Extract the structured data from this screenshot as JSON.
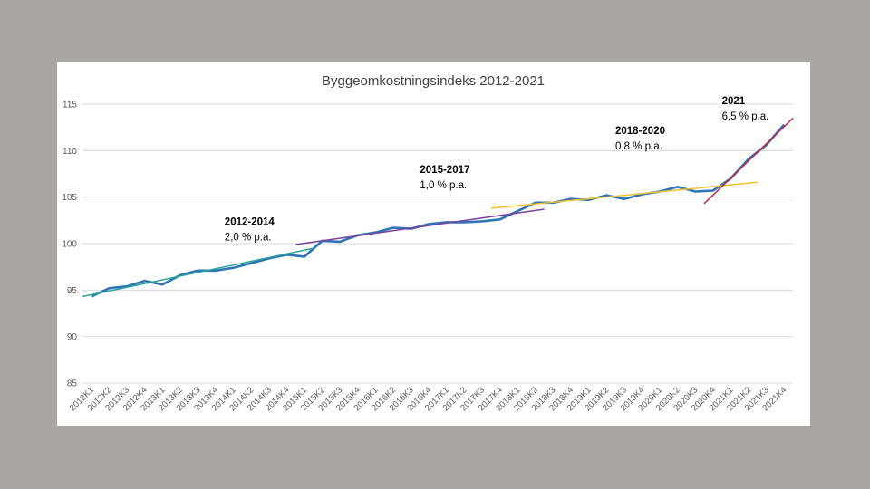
{
  "chart_data": {
    "type": "line",
    "title": "Byggeomkostningsindeks 2012-2021",
    "xlabel": "",
    "ylabel": "",
    "ylim": [
      85,
      115
    ],
    "yticks": [
      85,
      90,
      95,
      100,
      105,
      110,
      115
    ],
    "grid": true,
    "categories": [
      "2012K1",
      "2012K2",
      "2012K3",
      "2012K4",
      "2013K1",
      "2013K2",
      "2013K3",
      "2013K4",
      "2014K1",
      "2014K2",
      "2014K3",
      "2014K4",
      "2015K1",
      "2015K2",
      "2015K3",
      "2015K4",
      "2016K1",
      "2016K2",
      "2016K3",
      "2016K4",
      "2017K1",
      "2017K2",
      "2017K3",
      "2017K4",
      "2018K1",
      "2018K2",
      "2018K3",
      "2018K4",
      "2019K1",
      "2019K2",
      "2019K3",
      "2019K4",
      "2020K1",
      "2020K2",
      "2020K3",
      "2020K4",
      "2021K1",
      "2021K2",
      "2021K3",
      "2021K4"
    ],
    "series": [
      {
        "color": "#2e75b6",
        "values": [
          94.3,
          95.2,
          95.4,
          96.0,
          95.6,
          96.6,
          97.1,
          97.1,
          97.4,
          97.9,
          98.4,
          98.8,
          98.6,
          100.3,
          100.2,
          100.9,
          101.2,
          101.7,
          101.6,
          102.1,
          102.3,
          102.3,
          102.4,
          102.6,
          103.5,
          104.4,
          104.4,
          104.8,
          104.7,
          105.2,
          104.8,
          105.3,
          105.6,
          106.1,
          105.6,
          105.7,
          107.0,
          109.1,
          110.6,
          112.8
        ]
      }
    ],
    "trendlines": [
      {
        "color": "#2ca39a",
        "start": [
          0.0,
          94.3
        ],
        "end": [
          13.0,
          99.5
        ]
      },
      {
        "color": "#7b3fa0",
        "start": [
          12.0,
          99.9
        ],
        "end": [
          26.0,
          103.7
        ]
      },
      {
        "color": "#f2c12e",
        "start": [
          23.0,
          103.8
        ],
        "end": [
          38.0,
          106.6
        ]
      },
      {
        "color": "#c0263e",
        "start": [
          35.0,
          104.3
        ],
        "end": [
          40.0,
          113.5
        ]
      }
    ],
    "annotations": [
      {
        "title": "2012-2014",
        "rate": "2,0 % p.a.",
        "x_cat": "2014K1",
        "y": 102.0
      },
      {
        "title": "2015-2017",
        "rate": "1,0 % p.a.",
        "x_cat": "2016K4",
        "y": 107.6
      },
      {
        "title": "2018-2020",
        "rate": "0,8 % p.a.",
        "x_cat": "2019K3",
        "y": 111.8
      },
      {
        "title": "2021",
        "rate": "6,5 % p.a.",
        "x_cat": "2021K1",
        "y": 115.0
      }
    ]
  }
}
